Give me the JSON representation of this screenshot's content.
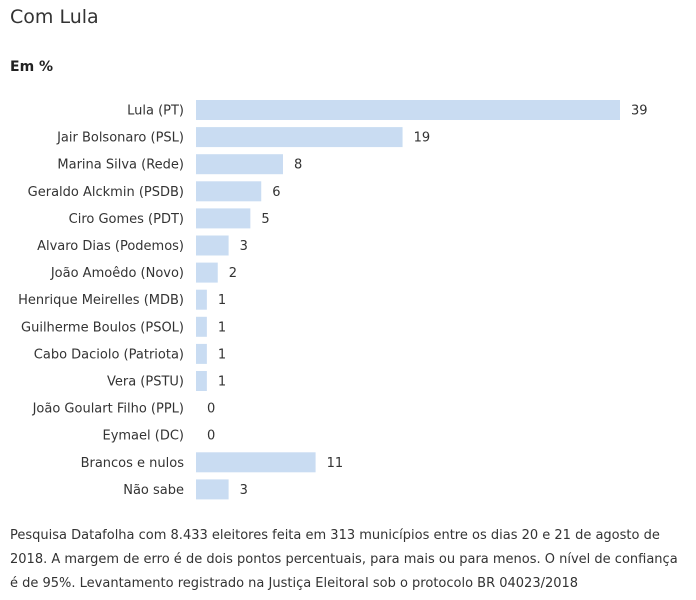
{
  "title": "Com Lula",
  "unit_label": "Em %",
  "chart_data": {
    "type": "bar",
    "orientation": "horizontal",
    "categories": [
      "Lula (PT)",
      "Jair Bolsonaro (PSL)",
      "Marina Silva (Rede)",
      "Geraldo Alckmin (PSDB)",
      "Ciro Gomes (PDT)",
      "Alvaro Dias (Podemos)",
      "João Amoêdo (Novo)",
      "Henrique Meirelles (MDB)",
      "Guilherme Boulos (PSOL)",
      "Cabo Daciolo (Patriota)",
      "Vera (PSTU)",
      "João Goulart Filho (PPL)",
      "Eymael (DC)",
      "Brancos e nulos",
      "Não sabe"
    ],
    "values": [
      39,
      19,
      8,
      6,
      5,
      3,
      2,
      1,
      1,
      1,
      1,
      0,
      0,
      11,
      3
    ],
    "xlim": [
      0,
      39
    ],
    "grid": false,
    "bar_color": "#c9dcf2"
  },
  "footnote": "Pesquisa Datafolha com 8.433 eleitores feita em 313 municípios entre os dias 20 e 21 de agosto de 2018. A margem de erro é de dois pontos percentuais, para mais ou para menos. O nível de confiança é de 95%. Levantamento registrado na Justiça Eleitoral sob o protocolo BR 04023/2018"
}
